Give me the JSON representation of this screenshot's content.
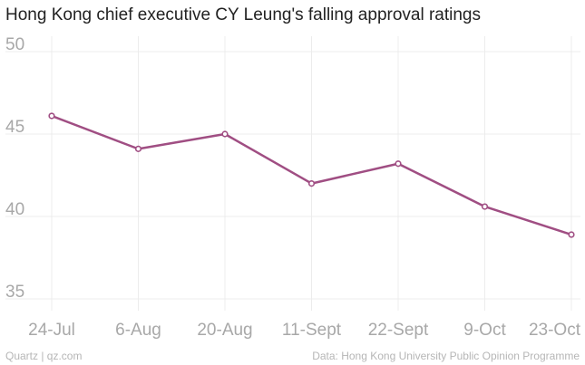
{
  "chart_data": {
    "type": "line",
    "title": "Hong Kong chief executive CY Leung's falling approval ratings",
    "xlabel": "",
    "ylabel": "",
    "categories": [
      "24-Jul",
      "6-Aug",
      "20-Aug",
      "11-Sept",
      "22-Sept",
      "9-Oct",
      "23-Oct"
    ],
    "yticks": [
      "50",
      "45",
      "40",
      "35"
    ],
    "ylim": [
      35,
      50
    ],
    "series": [
      {
        "name": "",
        "values": [
          46.1,
          44.1,
          45.0,
          42.0,
          43.2,
          40.6,
          38.9
        ]
      }
    ],
    "grid": true,
    "line_color": "#a04e83"
  },
  "footer": {
    "source_left": "Quartz | qz.com",
    "source_right": "Data: Hong Kong University Public Opinion Programme"
  }
}
